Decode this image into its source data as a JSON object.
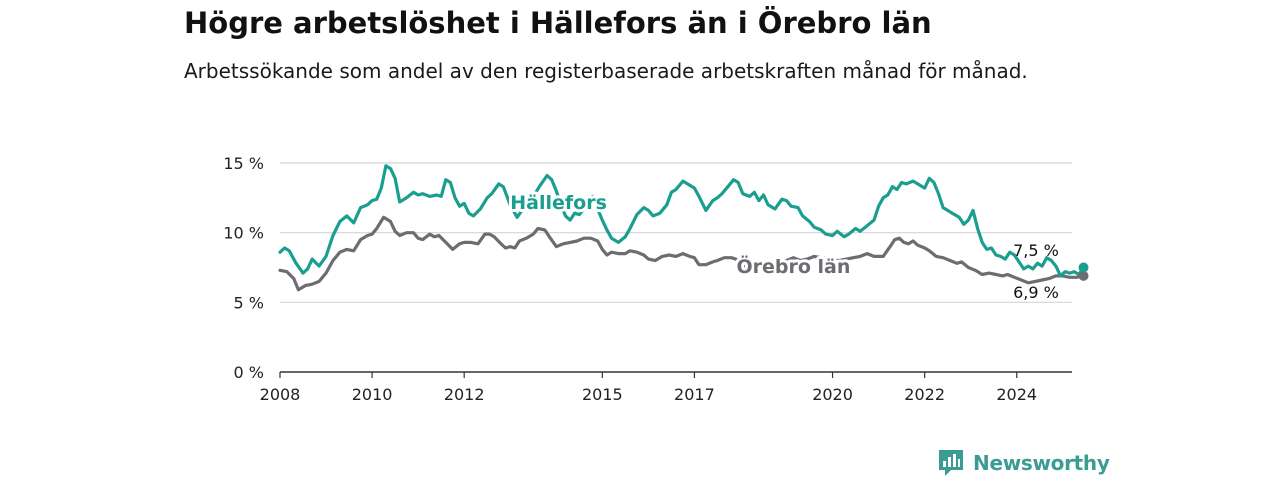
{
  "title": "Högre arbetslöshet i Hällefors än i Örebro län",
  "subtitle": "Arbetssökande som andel av den registerbaserade arbetskraften månad för månad.",
  "brand": {
    "name": "Newsworthy",
    "icon": "newsworthy-logo-icon"
  },
  "colors": {
    "primary": "#1a9e8f",
    "secondary": "#6d6c71",
    "grid": "#d4d4d4",
    "axis": "#333333",
    "brand": "#3a9c93"
  },
  "chart_data": {
    "type": "line",
    "title": "Högre arbetslöshet i Hällefors än i Örebro län",
    "subtitle": "Arbetssökande som andel av den registerbaserade arbetskraften månad för månad.",
    "xlabel": "",
    "ylabel": "",
    "xlim": [
      2008,
      2025.2
    ],
    "ylim": [
      0,
      15
    ],
    "x_ticks": [
      2008,
      2010,
      2012,
      2015,
      2017,
      2020,
      2022,
      2024
    ],
    "x_tick_labels": [
      "2008",
      "2010",
      "2012",
      "2015",
      "2017",
      "2020",
      "2022",
      "2024"
    ],
    "y_ticks": [
      0,
      5,
      10,
      15
    ],
    "y_tick_labels": [
      "0 %",
      "5 %",
      "10 %",
      "15 %"
    ],
    "grid": true,
    "legend": "inline labels",
    "series": [
      {
        "name": "Hällefors",
        "color": "#1a9e8f",
        "end_label": "7,5 %",
        "points": [
          [
            2008.0,
            8.6
          ],
          [
            2008.1,
            8.9
          ],
          [
            2008.2,
            8.7
          ],
          [
            2008.35,
            7.8
          ],
          [
            2008.5,
            7.1
          ],
          [
            2008.6,
            7.4
          ],
          [
            2008.7,
            8.1
          ],
          [
            2008.85,
            7.6
          ],
          [
            2009.0,
            8.3
          ],
          [
            2009.15,
            9.8
          ],
          [
            2009.3,
            10.8
          ],
          [
            2009.45,
            11.2
          ],
          [
            2009.6,
            10.7
          ],
          [
            2009.75,
            11.8
          ],
          [
            2009.9,
            12.0
          ],
          [
            2010.0,
            12.3
          ],
          [
            2010.1,
            12.4
          ],
          [
            2010.2,
            13.2
          ],
          [
            2010.3,
            14.8
          ],
          [
            2010.4,
            14.6
          ],
          [
            2010.5,
            13.9
          ],
          [
            2010.6,
            12.2
          ],
          [
            2010.75,
            12.5
          ],
          [
            2010.9,
            12.9
          ],
          [
            2011.0,
            12.7
          ],
          [
            2011.1,
            12.8
          ],
          [
            2011.25,
            12.6
          ],
          [
            2011.4,
            12.7
          ],
          [
            2011.5,
            12.6
          ],
          [
            2011.6,
            13.8
          ],
          [
            2011.7,
            13.6
          ],
          [
            2011.8,
            12.5
          ],
          [
            2011.9,
            11.9
          ],
          [
            2012.0,
            12.1
          ],
          [
            2012.1,
            11.4
          ],
          [
            2012.2,
            11.2
          ],
          [
            2012.35,
            11.7
          ],
          [
            2012.5,
            12.5
          ],
          [
            2012.6,
            12.8
          ],
          [
            2012.75,
            13.5
          ],
          [
            2012.85,
            13.3
          ],
          [
            2013.0,
            12.0
          ],
          [
            2013.15,
            11.1
          ],
          [
            2013.3,
            11.8
          ],
          [
            2013.5,
            12.6
          ],
          [
            2013.65,
            13.4
          ],
          [
            2013.8,
            14.1
          ],
          [
            2013.9,
            13.8
          ],
          [
            2014.0,
            13.0
          ],
          [
            2014.1,
            12.0
          ],
          [
            2014.2,
            11.2
          ],
          [
            2014.3,
            10.9
          ],
          [
            2014.4,
            11.4
          ],
          [
            2014.5,
            11.3
          ],
          [
            2014.6,
            11.7
          ],
          [
            2014.7,
            12.5
          ],
          [
            2014.8,
            12.6
          ],
          [
            2014.9,
            11.7
          ],
          [
            2015.0,
            10.9
          ],
          [
            2015.1,
            10.2
          ],
          [
            2015.2,
            9.6
          ],
          [
            2015.35,
            9.3
          ],
          [
            2015.5,
            9.7
          ],
          [
            2015.6,
            10.3
          ],
          [
            2015.75,
            11.3
          ],
          [
            2015.9,
            11.8
          ],
          [
            2016.0,
            11.6
          ],
          [
            2016.1,
            11.2
          ],
          [
            2016.25,
            11.4
          ],
          [
            2016.4,
            12.0
          ],
          [
            2016.5,
            12.9
          ],
          [
            2016.6,
            13.1
          ],
          [
            2016.75,
            13.7
          ],
          [
            2016.9,
            13.4
          ],
          [
            2017.0,
            13.2
          ],
          [
            2017.1,
            12.6
          ],
          [
            2017.25,
            11.6
          ],
          [
            2017.4,
            12.3
          ],
          [
            2017.5,
            12.5
          ],
          [
            2017.6,
            12.8
          ],
          [
            2017.75,
            13.4
          ],
          [
            2017.85,
            13.8
          ],
          [
            2017.95,
            13.6
          ],
          [
            2018.05,
            12.8
          ],
          [
            2018.2,
            12.6
          ],
          [
            2018.3,
            12.9
          ],
          [
            2018.4,
            12.3
          ],
          [
            2018.5,
            12.7
          ],
          [
            2018.6,
            12.0
          ],
          [
            2018.75,
            11.7
          ],
          [
            2018.9,
            12.4
          ],
          [
            2019.0,
            12.3
          ],
          [
            2019.1,
            11.9
          ],
          [
            2019.25,
            11.8
          ],
          [
            2019.35,
            11.2
          ],
          [
            2019.5,
            10.8
          ],
          [
            2019.6,
            10.4
          ],
          [
            2019.75,
            10.2
          ],
          [
            2019.85,
            9.9
          ],
          [
            2020.0,
            9.8
          ],
          [
            2020.1,
            10.1
          ],
          [
            2020.25,
            9.7
          ],
          [
            2020.35,
            9.9
          ],
          [
            2020.5,
            10.3
          ],
          [
            2020.6,
            10.1
          ],
          [
            2020.75,
            10.5
          ],
          [
            2020.9,
            10.9
          ],
          [
            2021.0,
            11.9
          ],
          [
            2021.1,
            12.5
          ],
          [
            2021.2,
            12.7
          ],
          [
            2021.3,
            13.3
          ],
          [
            2021.4,
            13.1
          ],
          [
            2021.5,
            13.6
          ],
          [
            2021.6,
            13.5
          ],
          [
            2021.75,
            13.7
          ],
          [
            2021.85,
            13.5
          ],
          [
            2022.0,
            13.2
          ],
          [
            2022.1,
            13.9
          ],
          [
            2022.2,
            13.6
          ],
          [
            2022.3,
            12.8
          ],
          [
            2022.4,
            11.8
          ],
          [
            2022.5,
            11.6
          ],
          [
            2022.6,
            11.4
          ],
          [
            2022.75,
            11.1
          ],
          [
            2022.85,
            10.6
          ],
          [
            2022.95,
            10.9
          ],
          [
            2023.05,
            11.6
          ],
          [
            2023.15,
            10.3
          ],
          [
            2023.25,
            9.3
          ],
          [
            2023.35,
            8.8
          ],
          [
            2023.45,
            8.9
          ],
          [
            2023.55,
            8.4
          ],
          [
            2023.65,
            8.3
          ],
          [
            2023.75,
            8.1
          ],
          [
            2023.85,
            8.6
          ],
          [
            2023.95,
            8.4
          ],
          [
            2024.05,
            7.9
          ],
          [
            2024.15,
            7.4
          ],
          [
            2024.25,
            7.6
          ],
          [
            2024.35,
            7.4
          ],
          [
            2024.45,
            7.8
          ],
          [
            2024.55,
            7.6
          ],
          [
            2024.65,
            8.2
          ],
          [
            2024.75,
            8.0
          ],
          [
            2024.85,
            7.6
          ],
          [
            2024.95,
            6.9
          ],
          [
            2025.05,
            7.2
          ],
          [
            2025.15,
            7.1
          ],
          [
            2025.25,
            7.2
          ],
          [
            2025.35,
            7.0
          ],
          [
            2025.45,
            7.5
          ]
        ]
      },
      {
        "name": "Örebro län",
        "color": "#6d6c71",
        "end_label": "6,9 %",
        "points": [
          [
            2008.0,
            7.3
          ],
          [
            2008.15,
            7.2
          ],
          [
            2008.3,
            6.7
          ],
          [
            2008.4,
            5.9
          ],
          [
            2008.55,
            6.2
          ],
          [
            2008.7,
            6.3
          ],
          [
            2008.85,
            6.5
          ],
          [
            2009.0,
            7.1
          ],
          [
            2009.15,
            8.0
          ],
          [
            2009.3,
            8.6
          ],
          [
            2009.45,
            8.8
          ],
          [
            2009.6,
            8.7
          ],
          [
            2009.75,
            9.5
          ],
          [
            2009.9,
            9.8
          ],
          [
            2010.0,
            9.9
          ],
          [
            2010.1,
            10.3
          ],
          [
            2010.25,
            11.1
          ],
          [
            2010.4,
            10.8
          ],
          [
            2010.5,
            10.1
          ],
          [
            2010.6,
            9.8
          ],
          [
            2010.75,
            10.0
          ],
          [
            2010.9,
            10.0
          ],
          [
            2011.0,
            9.6
          ],
          [
            2011.1,
            9.5
          ],
          [
            2011.25,
            9.9
          ],
          [
            2011.35,
            9.7
          ],
          [
            2011.45,
            9.8
          ],
          [
            2011.6,
            9.3
          ],
          [
            2011.75,
            8.8
          ],
          [
            2011.9,
            9.2
          ],
          [
            2012.0,
            9.3
          ],
          [
            2012.15,
            9.3
          ],
          [
            2012.3,
            9.2
          ],
          [
            2012.45,
            9.9
          ],
          [
            2012.55,
            9.9
          ],
          [
            2012.65,
            9.7
          ],
          [
            2012.8,
            9.2
          ],
          [
            2012.9,
            8.9
          ],
          [
            2013.0,
            9.0
          ],
          [
            2013.1,
            8.9
          ],
          [
            2013.2,
            9.4
          ],
          [
            2013.35,
            9.6
          ],
          [
            2013.5,
            9.9
          ],
          [
            2013.6,
            10.3
          ],
          [
            2013.75,
            10.2
          ],
          [
            2013.85,
            9.7
          ],
          [
            2014.0,
            9.0
          ],
          [
            2014.15,
            9.2
          ],
          [
            2014.3,
            9.3
          ],
          [
            2014.45,
            9.4
          ],
          [
            2014.6,
            9.6
          ],
          [
            2014.75,
            9.6
          ],
          [
            2014.9,
            9.4
          ],
          [
            2015.0,
            8.8
          ],
          [
            2015.1,
            8.4
          ],
          [
            2015.2,
            8.6
          ],
          [
            2015.35,
            8.5
          ],
          [
            2015.5,
            8.5
          ],
          [
            2015.6,
            8.7
          ],
          [
            2015.75,
            8.6
          ],
          [
            2015.9,
            8.4
          ],
          [
            2016.0,
            8.1
          ],
          [
            2016.15,
            8.0
          ],
          [
            2016.3,
            8.3
          ],
          [
            2016.45,
            8.4
          ],
          [
            2016.6,
            8.3
          ],
          [
            2016.75,
            8.5
          ],
          [
            2016.9,
            8.3
          ],
          [
            2017.0,
            8.2
          ],
          [
            2017.1,
            7.7
          ],
          [
            2017.25,
            7.7
          ],
          [
            2017.4,
            7.9
          ],
          [
            2017.5,
            8.0
          ],
          [
            2017.65,
            8.2
          ],
          [
            2017.8,
            8.2
          ],
          [
            2017.9,
            8.1
          ],
          [
            2018.0,
            7.8
          ],
          [
            2018.15,
            7.5
          ],
          [
            2018.3,
            7.8
          ],
          [
            2018.45,
            7.5
          ],
          [
            2018.6,
            7.6
          ],
          [
            2018.75,
            7.8
          ],
          [
            2018.85,
            7.9
          ],
          [
            2019.0,
            8.0
          ],
          [
            2019.15,
            8.2
          ],
          [
            2019.3,
            8.0
          ],
          [
            2019.45,
            8.1
          ],
          [
            2019.6,
            8.3
          ],
          [
            2019.75,
            8.2
          ],
          [
            2019.9,
            8.1
          ],
          [
            2020.0,
            8.0
          ],
          [
            2020.15,
            8.0
          ],
          [
            2020.3,
            8.1
          ],
          [
            2020.45,
            8.2
          ],
          [
            2020.6,
            8.3
          ],
          [
            2020.75,
            8.5
          ],
          [
            2020.9,
            8.3
          ],
          [
            2021.0,
            8.3
          ],
          [
            2021.1,
            8.3
          ],
          [
            2021.25,
            9.0
          ],
          [
            2021.35,
            9.5
          ],
          [
            2021.45,
            9.6
          ],
          [
            2021.55,
            9.3
          ],
          [
            2021.65,
            9.2
          ],
          [
            2021.75,
            9.4
          ],
          [
            2021.85,
            9.1
          ],
          [
            2022.0,
            8.9
          ],
          [
            2022.1,
            8.7
          ],
          [
            2022.25,
            8.3
          ],
          [
            2022.4,
            8.2
          ],
          [
            2022.55,
            8.0
          ],
          [
            2022.7,
            7.8
          ],
          [
            2022.8,
            7.9
          ],
          [
            2022.95,
            7.5
          ],
          [
            2023.1,
            7.3
          ],
          [
            2023.25,
            7.0
          ],
          [
            2023.4,
            7.1
          ],
          [
            2023.55,
            7.0
          ],
          [
            2023.7,
            6.9
          ],
          [
            2023.8,
            7.0
          ],
          [
            2023.95,
            6.8
          ],
          [
            2024.1,
            6.6
          ],
          [
            2024.25,
            6.4
          ],
          [
            2024.4,
            6.5
          ],
          [
            2024.55,
            6.6
          ],
          [
            2024.7,
            6.7
          ],
          [
            2024.85,
            6.9
          ],
          [
            2025.0,
            6.9
          ],
          [
            2025.15,
            6.8
          ],
          [
            2025.3,
            6.8
          ],
          [
            2025.45,
            6.9
          ]
        ]
      }
    ]
  }
}
